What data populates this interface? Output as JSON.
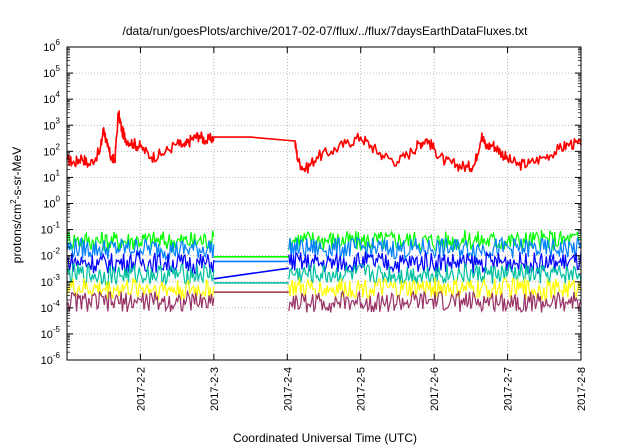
{
  "chart_data": {
    "type": "line",
    "title": "/data/run/goesPlots/archive/2017-02-07/flux/../flux/7daysEarthDataFluxes.txt",
    "xlabel": "Coordinated Universal Time (UTC)",
    "ylabel_base": "protons/cm",
    "ylabel_sup": "2",
    "ylabel_rest": "-s-sr-MeV",
    "y_scale": "log",
    "ylim_exp": [
      -6,
      6
    ],
    "y_tick_exponents": [
      -6,
      -5,
      -4,
      -3,
      -2,
      -1,
      0,
      1,
      2,
      3,
      4,
      5,
      6
    ],
    "y_tick_base": "10",
    "xlim": [
      1.0,
      8.0
    ],
    "x_ticks": [
      {
        "x": 2,
        "label": "2017-2-2"
      },
      {
        "x": 3,
        "label": "2017-2-3"
      },
      {
        "x": 4,
        "label": "2017-2-4"
      },
      {
        "x": 5,
        "label": "2017-2-5"
      },
      {
        "x": 6,
        "label": "2017-2-6"
      },
      {
        "x": 7,
        "label": "2017-2-7"
      },
      {
        "x": 8,
        "label": "2017-2-8"
      }
    ],
    "grid": true,
    "data_gap": [
      3.0,
      4.02
    ],
    "series": [
      {
        "color": "#ff0000",
        "x": [
          1.0,
          1.1,
          1.2,
          1.3,
          1.45,
          1.5,
          1.55,
          1.6,
          1.65,
          1.7,
          1.75,
          1.8,
          1.9,
          2.0,
          2.15,
          2.3,
          2.5,
          2.6,
          2.7,
          2.8,
          2.9,
          3.0,
          3.5,
          4.1,
          4.15,
          4.25,
          4.4,
          4.6,
          4.8,
          5.0,
          5.15,
          5.3,
          5.5,
          5.7,
          5.8,
          5.9,
          6.0,
          6.15,
          6.3,
          6.45,
          6.55,
          6.65,
          6.7,
          6.8,
          6.9,
          7.0,
          7.15,
          7.3,
          7.5,
          7.7,
          7.85,
          8.0
        ],
        "y": [
          50,
          35,
          60,
          30,
          100,
          800,
          150,
          60,
          40,
          3000,
          600,
          300,
          200,
          150,
          60,
          80,
          200,
          150,
          300,
          400,
          250,
          350,
          350,
          250,
          40,
          20,
          60,
          100,
          200,
          350,
          150,
          70,
          40,
          100,
          200,
          300,
          120,
          40,
          30,
          25,
          30,
          500,
          150,
          180,
          100,
          50,
          30,
          35,
          60,
          120,
          200,
          170
        ]
      },
      {
        "color": "#00ff00",
        "x": [
          1.0,
          1.5,
          2.0,
          2.5,
          3.0,
          4.02,
          4.5,
          5.0,
          5.5,
          6.0,
          6.5,
          7.0,
          7.5,
          8.0
        ],
        "y": [
          0.04,
          0.035,
          0.04,
          0.035,
          0.04,
          0.04,
          0.04,
          0.035,
          0.04,
          0.035,
          0.04,
          0.035,
          0.04,
          0.04
        ],
        "gap_y": 0.009
      },
      {
        "color": "#0080ff",
        "x": [
          1.0,
          1.5,
          2.0,
          2.5,
          3.0,
          4.02,
          4.5,
          5.0,
          5.5,
          6.0,
          6.5,
          7.0,
          7.5,
          8.0
        ],
        "y": [
          0.02,
          0.018,
          0.02,
          0.017,
          0.02,
          0.02,
          0.019,
          0.02,
          0.018,
          0.02,
          0.019,
          0.02,
          0.018,
          0.02
        ],
        "gap_y": 0.006
      },
      {
        "color": "#0000ff",
        "x": [
          1.0,
          1.5,
          2.0,
          2.5,
          3.0,
          4.02,
          4.5,
          5.0,
          5.5,
          6.0,
          6.5,
          7.0,
          7.5,
          8.0
        ],
        "y": [
          0.006,
          0.005,
          0.006,
          0.005,
          0.005,
          0.006,
          0.005,
          0.006,
          0.005,
          0.006,
          0.005,
          0.006,
          0.005,
          0.006
        ],
        "gap_y": 0.0013
      },
      {
        "color": "#00c0a0",
        "x": [
          1.0,
          1.5,
          2.0,
          2.5,
          3.0,
          4.02,
          4.5,
          5.0,
          5.5,
          6.0,
          6.5,
          7.0,
          7.5,
          8.0
        ],
        "y": [
          0.002,
          0.0018,
          0.002,
          0.0019,
          0.002,
          0.002,
          0.0019,
          0.002,
          0.0018,
          0.002,
          0.0019,
          0.002,
          0.0018,
          0.002
        ],
        "gap_y": 0.0009
      },
      {
        "color": "#ffff00",
        "x": [
          1.0,
          1.5,
          2.0,
          2.5,
          3.0,
          4.02,
          4.5,
          5.0,
          5.5,
          6.0,
          6.5,
          7.0,
          7.5,
          8.0
        ],
        "y": [
          0.0006,
          0.0005,
          0.0006,
          0.0005,
          0.0005,
          0.0006,
          0.0005,
          0.0006,
          0.0005,
          0.0006,
          0.0005,
          0.0006,
          0.0005,
          0.0006
        ],
        "gap_y": 0.0004
      },
      {
        "color": "#993366",
        "x": [
          1.0,
          1.5,
          2.0,
          2.5,
          3.0,
          4.02,
          4.5,
          5.0,
          5.5,
          6.0,
          6.5,
          7.0,
          7.5,
          8.0
        ],
        "y": [
          0.00018,
          0.00016,
          0.00018,
          0.00017,
          0.00018,
          0.00017,
          0.00016,
          0.00018,
          0.00016,
          0.00018,
          0.00017,
          0.00018,
          0.00016,
          0.00018
        ],
        "gap_y": 0.0004
      }
    ]
  }
}
